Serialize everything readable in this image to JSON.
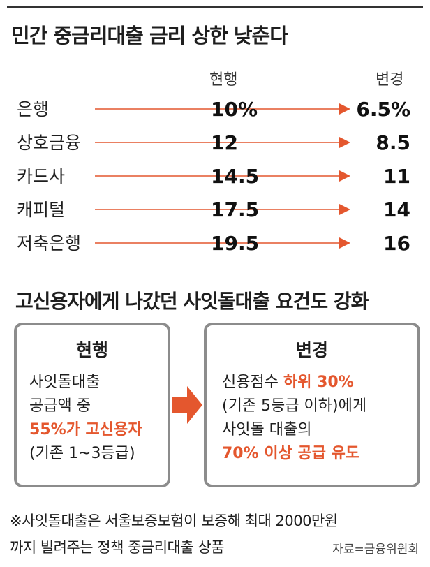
{
  "title": "민간 중금리대출 금리 상한 낮춘다",
  "chart_data": {
    "type": "table",
    "columns": [
      "현행",
      "변경"
    ],
    "rows": [
      {
        "label": "은행",
        "current": "10%",
        "changed": "6.5%"
      },
      {
        "label": "상호금융",
        "current": "12",
        "changed": "8.5"
      },
      {
        "label": "카드사",
        "current": "14.5",
        "changed": "11"
      },
      {
        "label": "캐피털",
        "current": "17.5",
        "changed": "14"
      },
      {
        "label": "저축은행",
        "current": "19.5",
        "changed": "16"
      }
    ],
    "arrow_color": "#e4572e"
  },
  "section2": {
    "title": "고신용자에게 나갔던 사잇돌대출 요건도 강화",
    "current_box": {
      "title": "현행",
      "line1": "사잇돌대출",
      "line2": "공급액 중",
      "line3": "55%가 고신용자",
      "line4": "(기존 1~3등급)"
    },
    "changed_box": {
      "title": "변경",
      "line1_prefix": "신용점수 ",
      "line1_highlight": "하위 30%",
      "line2": "(기존 5등급 이하)에게",
      "line3": "사잇돌 대출의",
      "line4": "70% 이상 공급 유도"
    }
  },
  "footnote": {
    "line1": "※사잇돌대출은 서울보증보험이 보증해 최대 2000만원",
    "line2": "까지 빌려주는 정책 중금리대출 상품",
    "source": "자료=금융위원회"
  },
  "colors": {
    "accent": "#e4572e",
    "box_border": "#8c8c8c",
    "text": "#1e1e1e"
  }
}
